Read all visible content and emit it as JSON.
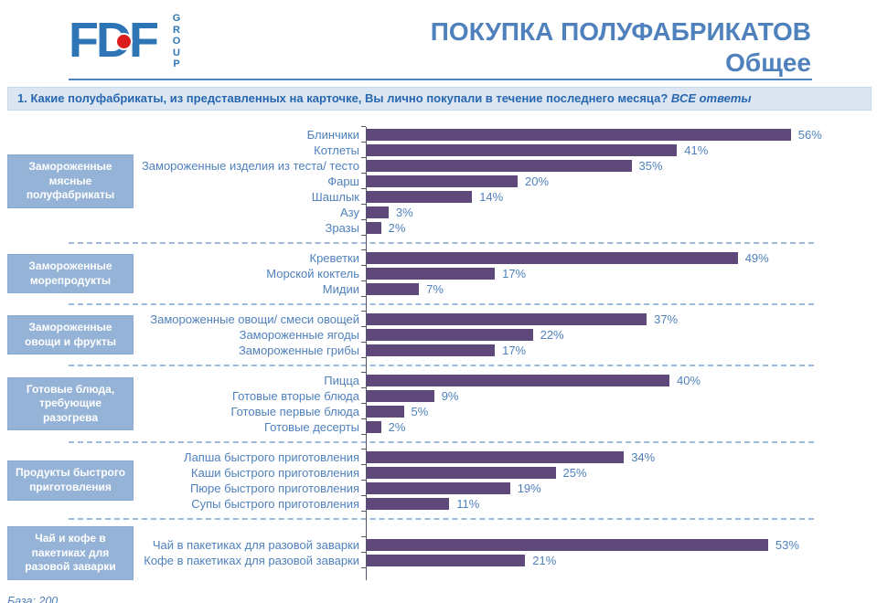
{
  "header": {
    "logo_text": "FDF",
    "logo_vertical_text": "GROUP",
    "title_line1": "ПОКУПКА ПОЛУФАБРИКАТОВ",
    "title_line2": "Общее"
  },
  "question": {
    "text": "1. Какие полуфабрикаты,  из представленных  на карточке, Вы лично покупали в  течение последнего месяца? ",
    "emphasis": "ВСЕ ответы"
  },
  "footer": {
    "base_label": "База: 200"
  },
  "colors": {
    "title_blue": "#4F81BD",
    "bar_purple": "#5F497A",
    "category_box_blue": "#95B3D7",
    "question_bg": "#DCE6F2",
    "logo_blue": "#2E75B6",
    "logo_dot_red": "#DD1D1D"
  },
  "chart_data": {
    "type": "bar",
    "orientation": "horizontal",
    "unit": "%",
    "xlim": [
      0,
      59
    ],
    "grid": false,
    "value_labels": "outside-end",
    "groups": [
      {
        "category": "Замороженные мясные полуфабрикаты",
        "items": [
          {
            "label": "Блинчики",
            "value": 56
          },
          {
            "label": "Котлеты",
            "value": 41
          },
          {
            "label": "Замороженные изделия из теста/ тесто",
            "value": 35
          },
          {
            "label": "Фарш",
            "value": 20
          },
          {
            "label": "Шашлык",
            "value": 14
          },
          {
            "label": "Азу",
            "value": 3
          },
          {
            "label": "Зразы",
            "value": 2
          }
        ]
      },
      {
        "category": "Замороженные морепродукты",
        "items": [
          {
            "label": "Креветки",
            "value": 49
          },
          {
            "label": "Морской коктель",
            "value": 17
          },
          {
            "label": "Мидии",
            "value": 7
          }
        ]
      },
      {
        "category": "Замороженные овощи и фрукты",
        "items": [
          {
            "label": "Замороженные овощи/ смеси овощей",
            "value": 37
          },
          {
            "label": "Замороженные ягоды",
            "value": 22
          },
          {
            "label": "Замороженные грибы",
            "value": 17
          }
        ]
      },
      {
        "category": "Готовые блюда, требующие разогрева",
        "items": [
          {
            "label": "Пицца",
            "value": 40
          },
          {
            "label": "Готовые вторые блюда",
            "value": 9
          },
          {
            "label": "Готовые первые блюда",
            "value": 5
          },
          {
            "label": "Готовые десерты",
            "value": 2
          }
        ]
      },
      {
        "category": "Продукты быстрого приготовления",
        "items": [
          {
            "label": "Лапша быстрого приготовления",
            "value": 34
          },
          {
            "label": "Каши быстрого приготовления",
            "value": 25
          },
          {
            "label": "Пюре быстрого приготовления",
            "value": 19
          },
          {
            "label": "Супы быстрого приготовления",
            "value": 11
          }
        ]
      },
      {
        "category": "Чай и кофе в пакетиках для разовой заварки",
        "items": [
          {
            "label": "Чай в пакетиках для разовой заварки",
            "value": 53
          },
          {
            "label": "Кофе в пакетиках для разовой заварки",
            "value": 21
          }
        ]
      }
    ]
  }
}
